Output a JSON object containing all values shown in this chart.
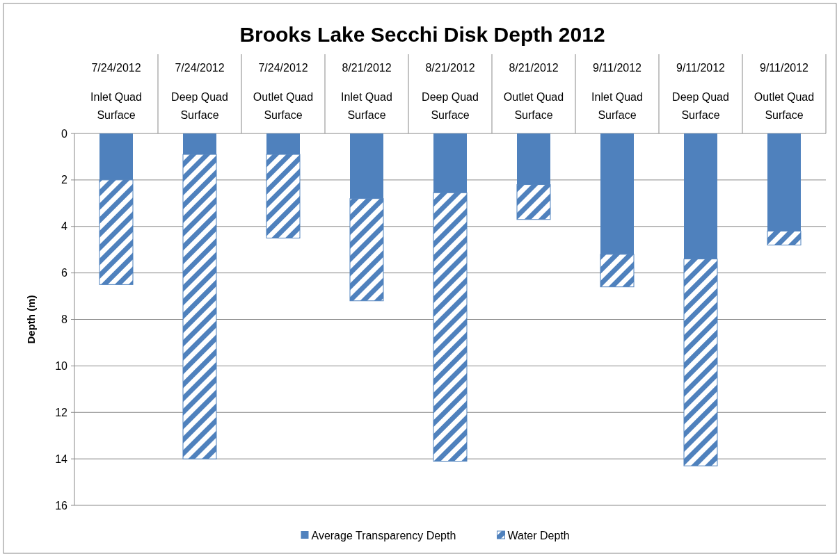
{
  "chart_data": {
    "type": "bar",
    "title": "Brooks Lake Secchi Disk Depth 2012",
    "ylabel": "Depth (m)",
    "stacked": true,
    "categories": [
      "7/24/2012 Inlet Quad Surface",
      "7/24/2012 Deep Quad Surface",
      "7/24/2012 Outlet Quad Surface",
      "8/21/2012 Inlet Quad Surface",
      "8/21/2012 Deep Quad Surface",
      "8/21/2012 Outlet Quad Surface",
      "9/11/2012 Inlet Quad Surface",
      "9/11/2012 Deep Quad Surface",
      "9/11/2012 Outlet Quad Surface"
    ],
    "series": [
      {
        "name": "Average Transparency Depth",
        "color": "#4f81bd",
        "values": [
          2.0,
          0.9,
          0.9,
          2.8,
          2.55,
          2.2,
          5.2,
          5.4,
          4.2
        ]
      },
      {
        "name": "Water Depth",
        "color": "#4f81bd",
        "values": [
          4.5,
          13.1,
          3.6,
          4.4,
          11.55,
          1.5,
          1.4,
          8.9,
          0.6
        ]
      }
    ],
    "ylim": [
      16,
      0
    ],
    "yticks": [
      0,
      2,
      4,
      6,
      8,
      10,
      12,
      14,
      16
    ],
    "grid": "y",
    "legend": "bottom"
  }
}
